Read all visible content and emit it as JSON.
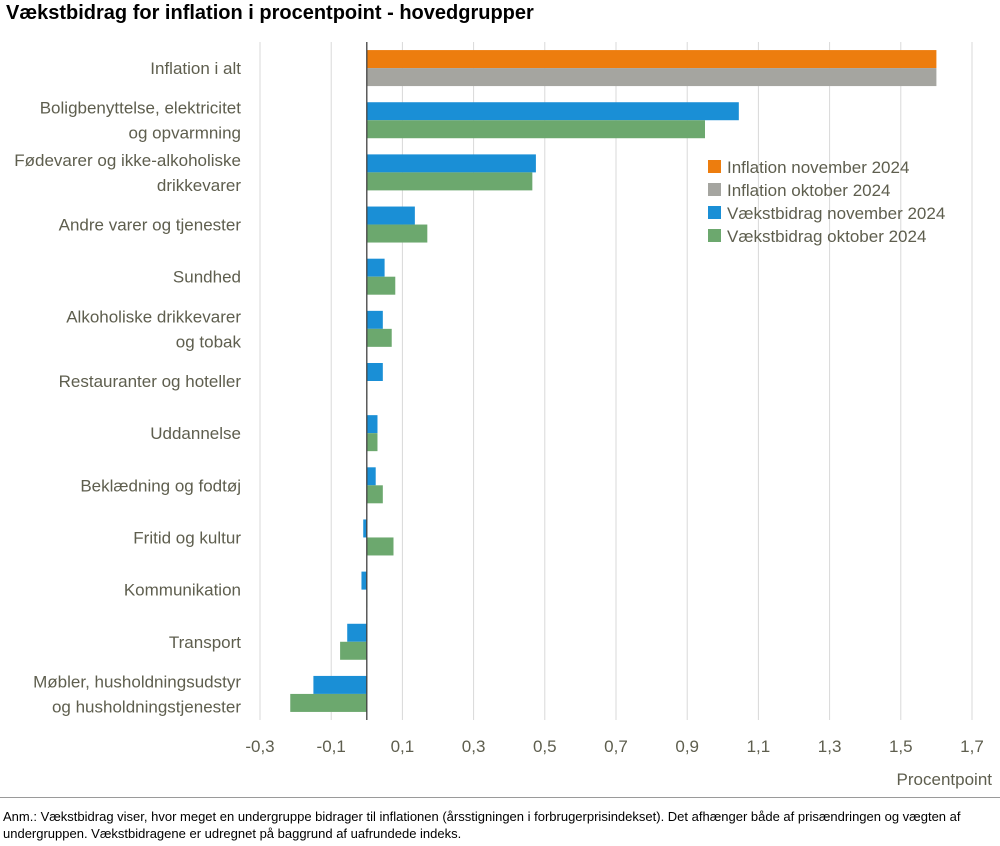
{
  "chart_data": {
    "type": "bar",
    "orientation": "horizontal",
    "title": "Vækstbidrag for inflation i procentpoint - hovedgrupper",
    "xlabel": "Procentpoint",
    "ylabel": "",
    "xlim": [
      -0.3,
      1.7
    ],
    "xticks": [
      "-0,3",
      "-0,1",
      "0,1",
      "0,3",
      "0,5",
      "0,7",
      "0,9",
      "1,1",
      "1,3",
      "1,5",
      "1,7"
    ],
    "grid": true,
    "legend_position": "right",
    "categories": [
      [
        "Inflation i alt"
      ],
      [
        "Boligbenyttelse, elektricitet",
        "og opvarmning"
      ],
      [
        "Fødevarer og ikke-alkoholiske",
        "drikkevarer"
      ],
      [
        "Andre varer og tjenester"
      ],
      [
        "Sundhed"
      ],
      [
        "Alkoholiske drikkevarer",
        "og tobak"
      ],
      [
        "Restauranter og hoteller"
      ],
      [
        "Uddannelse"
      ],
      [
        "Beklædning og fodtøj"
      ],
      [
        "Fritid og kultur"
      ],
      [
        "Kommunikation"
      ],
      [
        "Transport"
      ],
      [
        "Møbler, husholdningsudstyr",
        "og husholdningstjenester"
      ]
    ],
    "series": [
      {
        "name": "Inflation november 2024",
        "color": "#ed7d0e",
        "values": [
          1.6,
          null,
          null,
          null,
          null,
          null,
          null,
          null,
          null,
          null,
          null,
          null,
          null
        ],
        "slot": 0
      },
      {
        "name": "Inflation oktober 2024",
        "color": "#a5a5a0",
        "values": [
          1.6,
          null,
          null,
          null,
          null,
          null,
          null,
          null,
          null,
          null,
          null,
          null,
          null
        ],
        "slot": 1
      },
      {
        "name": "Vækstbidrag november 2024",
        "color": "#1a8fd6",
        "values": [
          null,
          1.045,
          0.475,
          0.135,
          0.05,
          0.045,
          0.045,
          0.03,
          0.025,
          -0.01,
          -0.015,
          -0.055,
          -0.15
        ],
        "slot": 0
      },
      {
        "name": "Vækstbidrag oktober 2024",
        "color": "#6ca86e",
        "values": [
          null,
          0.95,
          0.465,
          0.17,
          0.08,
          0.07,
          0.0,
          0.03,
          0.045,
          0.075,
          0.0,
          -0.075,
          -0.215
        ],
        "slot": 1
      }
    ]
  },
  "note": "Anm.: Vækstbidrag viser, hvor meget en undergruppe bidrager til inflationen (årsstigningen i forbrugerprisindekset). Det afhænger både af prisændringen og vægten af undergruppen. Vækstbidragene er udregnet på baggrund af uafrundede indeks."
}
